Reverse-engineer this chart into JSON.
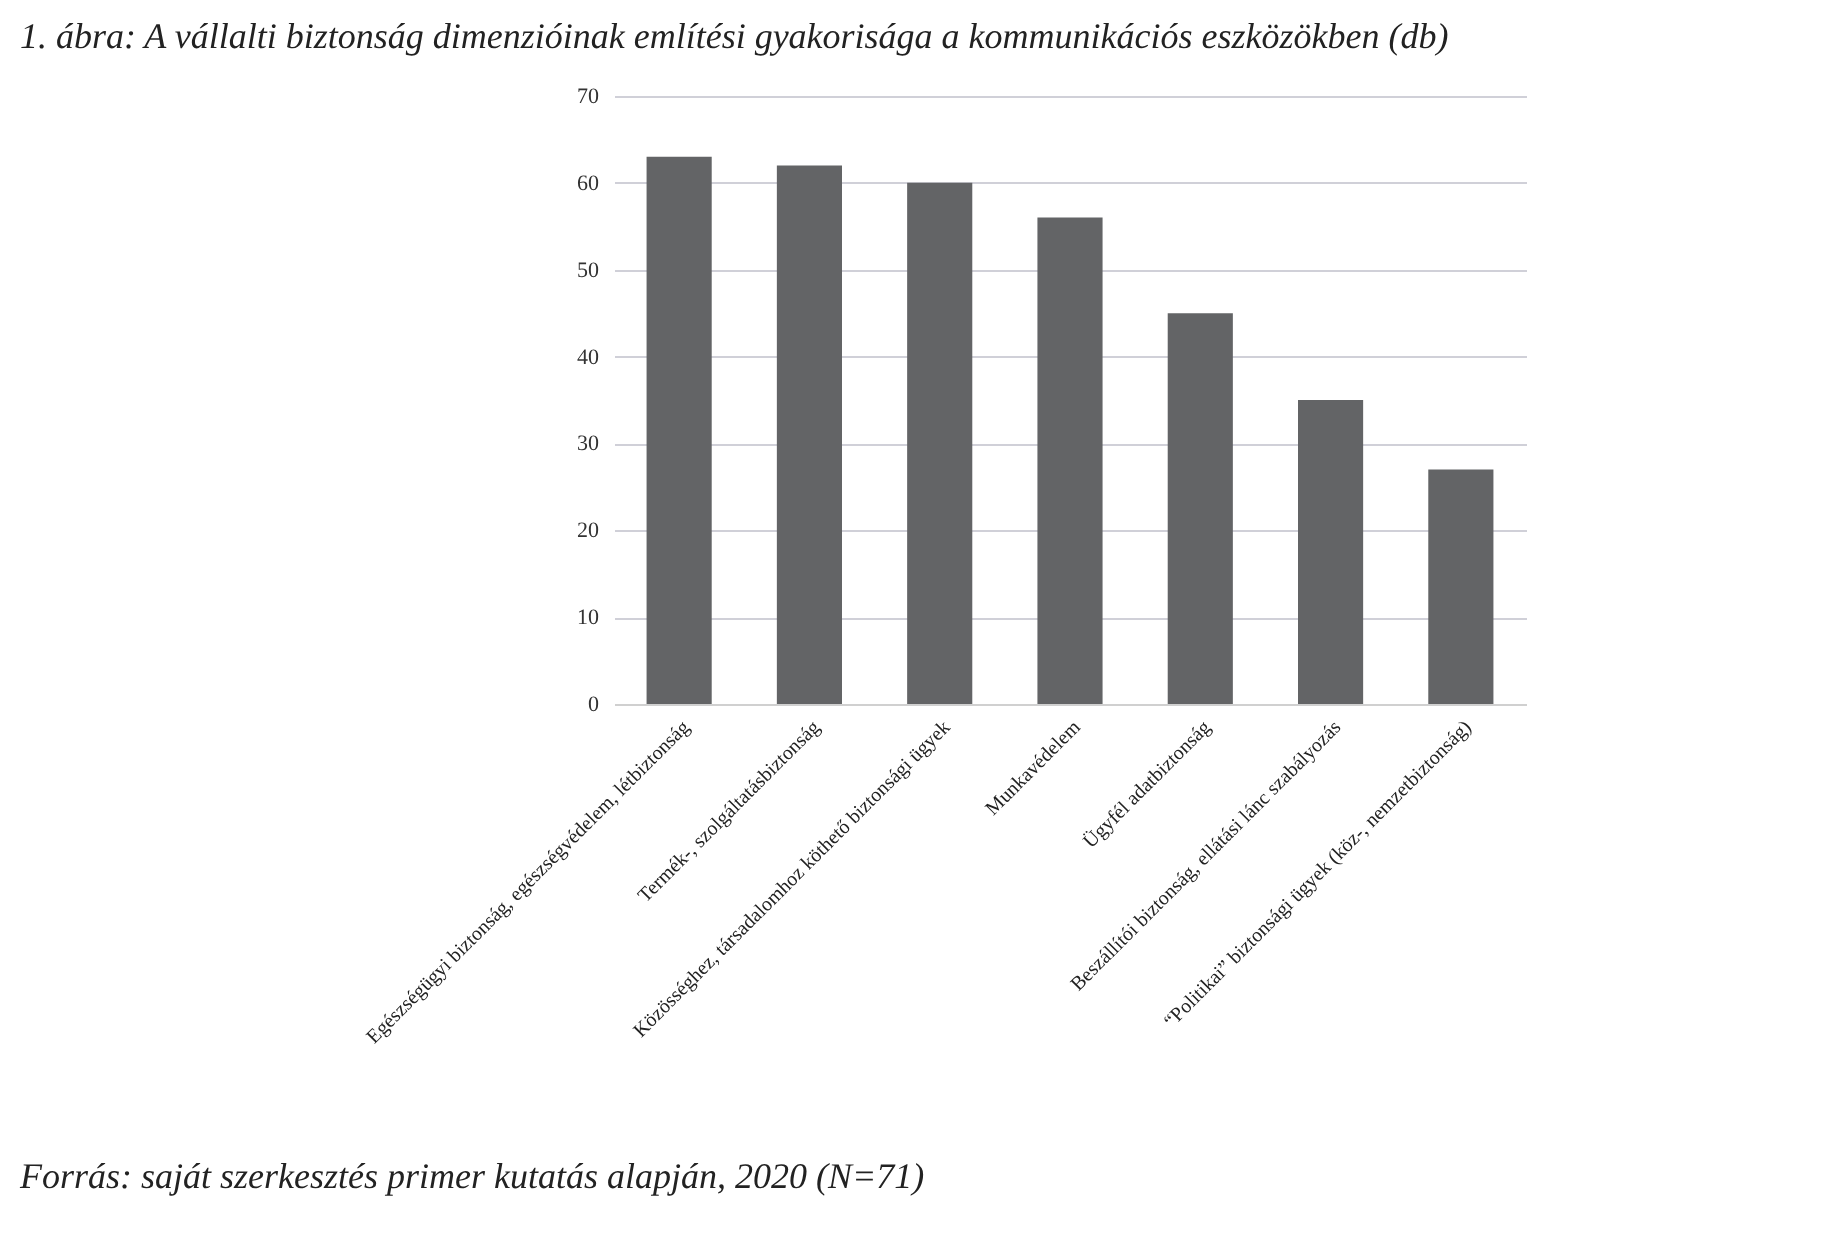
{
  "chart_data": {
    "type": "bar",
    "title": "1. ábra: A vállalti biztonság dimenzióinak említési gyakorisága a kommunikációs eszközökben (db)",
    "categories": [
      "Egészségügyi biztonság, egészségvédelem, létbiztonság",
      "Termék-, szolgáltatásbiztonság",
      "Közösséghez, társadalomhoz köthető biztonsági ügyek",
      "Munkavédelem",
      "Ügyfél adatbiztonság",
      "Beszállítói biztonság, ellátási lánc szabályozás",
      "“Politikai” biztonsági ügyek (köz-, nemzetbiztonság)"
    ],
    "values": [
      63,
      62,
      60,
      56,
      45,
      35,
      27
    ],
    "color": "#636466",
    "ylim": [
      0,
      70
    ],
    "yticks": [
      0,
      10,
      20,
      30,
      40,
      50,
      60,
      70
    ],
    "grid": "y",
    "annotations": [
      "Forrás: saját szerkesztés primer kutatás alapján, 2020 (N=71)"
    ]
  }
}
